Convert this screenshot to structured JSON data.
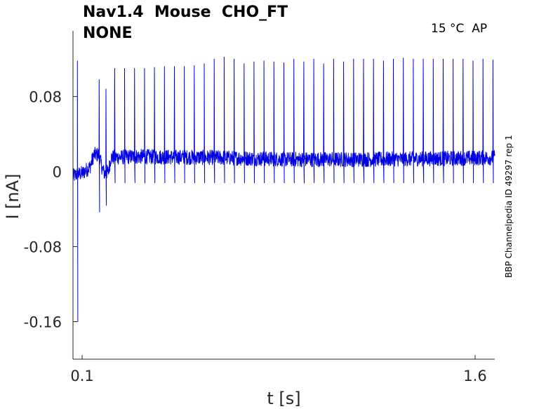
{
  "title_line1": "Nav1.4  Mouse  CHO_FT",
  "title_line2": "NONE",
  "condition": "15 °C  AP",
  "side_label": "BBP Channelpedia ID 49297 rep 1",
  "colors": {
    "trace": "#0000e6",
    "axis": "#262626"
  },
  "chart_data": {
    "type": "line",
    "xlabel": "t [s]",
    "ylabel": "I [nA]",
    "xlim": [
      0.065,
      1.675
    ],
    "ylim": [
      -0.2,
      0.15
    ],
    "xticks": [
      0.1,
      1.6
    ],
    "xtick_labels": [
      "0.1",
      "1.6"
    ],
    "yticks": [
      0.08,
      0,
      -0.08,
      -0.16
    ],
    "ytick_labels": [
      "0.08",
      "0",
      "-0.08",
      "-0.16"
    ],
    "grid": false,
    "series": [
      {
        "baseline": [
          [
            0.065,
            -0.005
          ],
          [
            0.08,
            -0.003
          ],
          [
            0.1,
            -0.002
          ],
          [
            0.13,
            0.005
          ],
          [
            0.145,
            0.018
          ],
          [
            0.165,
            0.018
          ],
          [
            0.175,
            0.005
          ],
          [
            0.185,
            -0.002
          ],
          [
            0.2,
            0.0
          ],
          [
            0.21,
            0.015
          ],
          [
            0.3,
            0.016
          ],
          [
            0.6,
            0.015
          ],
          [
            0.9,
            0.013
          ],
          [
            1.2,
            0.013
          ],
          [
            1.5,
            0.014
          ],
          [
            1.7,
            0.015
          ],
          [
            1.715,
            0.008
          ],
          [
            1.725,
            -0.005
          ],
          [
            1.85,
            -0.006
          ]
        ],
        "noise_amplitude": 0.008,
        "spikes_up": [
          [
            0.082,
            0.118
          ],
          [
            0.165,
            0.098
          ],
          [
            0.191,
            0.088
          ],
          [
            0.224,
            0.11
          ],
          [
            0.262,
            0.11
          ],
          [
            0.3,
            0.11
          ],
          [
            0.338,
            0.11
          ],
          [
            0.376,
            0.111
          ],
          [
            0.414,
            0.112
          ],
          [
            0.452,
            0.112
          ],
          [
            0.49,
            0.112
          ],
          [
            0.528,
            0.113
          ],
          [
            0.566,
            0.115
          ],
          [
            0.604,
            0.12
          ],
          [
            0.642,
            0.122
          ],
          [
            0.68,
            0.12
          ],
          [
            0.718,
            0.115
          ],
          [
            0.756,
            0.117
          ],
          [
            0.794,
            0.118
          ],
          [
            0.832,
            0.117
          ],
          [
            0.87,
            0.116
          ],
          [
            0.908,
            0.12
          ],
          [
            0.946,
            0.117
          ],
          [
            0.984,
            0.12
          ],
          [
            1.022,
            0.115
          ],
          [
            1.06,
            0.12
          ],
          [
            1.098,
            0.117
          ],
          [
            1.136,
            0.12
          ],
          [
            1.174,
            0.12
          ],
          [
            1.212,
            0.12
          ],
          [
            1.25,
            0.118
          ],
          [
            1.288,
            0.12
          ],
          [
            1.326,
            0.121
          ],
          [
            1.364,
            0.12
          ],
          [
            1.402,
            0.12
          ],
          [
            1.44,
            0.12
          ],
          [
            1.478,
            0.12
          ],
          [
            1.516,
            0.12
          ],
          [
            1.554,
            0.12
          ],
          [
            1.592,
            0.118
          ],
          [
            1.63,
            0.12
          ],
          [
            1.668,
            0.119
          ]
        ],
        "spikes_down": [
          [
            0.082,
            -0.16
          ],
          [
            0.165,
            -0.043
          ],
          [
            0.191,
            -0.036
          ],
          [
            0.224,
            -0.012
          ],
          [
            0.262,
            -0.012
          ],
          [
            0.3,
            -0.012
          ],
          [
            0.338,
            -0.012
          ],
          [
            0.376,
            -0.012
          ],
          [
            0.414,
            -0.012
          ],
          [
            0.452,
            -0.012
          ],
          [
            0.49,
            -0.012
          ],
          [
            0.528,
            -0.012
          ],
          [
            0.566,
            -0.012
          ],
          [
            0.604,
            -0.012
          ],
          [
            0.642,
            -0.012
          ],
          [
            0.68,
            -0.012
          ],
          [
            0.718,
            -0.012
          ],
          [
            0.756,
            -0.012
          ],
          [
            0.794,
            -0.012
          ],
          [
            0.832,
            -0.012
          ],
          [
            0.87,
            -0.012
          ],
          [
            0.908,
            -0.012
          ],
          [
            0.946,
            -0.012
          ],
          [
            0.984,
            -0.012
          ],
          [
            1.022,
            -0.012
          ],
          [
            1.06,
            -0.012
          ],
          [
            1.098,
            -0.012
          ],
          [
            1.136,
            -0.012
          ],
          [
            1.174,
            -0.012
          ],
          [
            1.212,
            -0.012
          ],
          [
            1.25,
            -0.012
          ],
          [
            1.288,
            -0.012
          ],
          [
            1.326,
            -0.012
          ],
          [
            1.364,
            -0.012
          ],
          [
            1.402,
            -0.012
          ],
          [
            1.44,
            -0.012
          ],
          [
            1.478,
            -0.012
          ],
          [
            1.516,
            -0.012
          ],
          [
            1.554,
            -0.012
          ],
          [
            1.592,
            -0.012
          ],
          [
            1.63,
            -0.012
          ],
          [
            1.668,
            -0.012
          ]
        ]
      }
    ]
  }
}
